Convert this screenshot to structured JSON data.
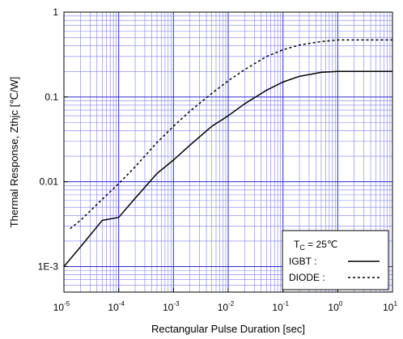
{
  "chart_data": {
    "type": "line",
    "xlabel": "Rectangular Pulse Duration [sec]",
    "ylabel": "Thermal Response, Zthjc [℃/W]",
    "x_scale": "log",
    "y_scale": "log",
    "xlim": [
      1e-05,
      10
    ],
    "ylim": [
      0.0005,
      1
    ],
    "grid": true,
    "x_ticks": [
      {
        "value": 1e-05,
        "base": "10",
        "exp": "-5"
      },
      {
        "value": 0.0001,
        "base": "10",
        "exp": "-4"
      },
      {
        "value": 0.001,
        "base": "10",
        "exp": "-3"
      },
      {
        "value": 0.01,
        "base": "10",
        "exp": "-2"
      },
      {
        "value": 0.1,
        "base": "10",
        "exp": "-1"
      },
      {
        "value": 1,
        "base": "10",
        "exp": "0"
      },
      {
        "value": 10,
        "base": "10",
        "exp": "1"
      }
    ],
    "y_ticks": [
      {
        "value": 0.001,
        "label": "1E-3"
      },
      {
        "value": 0.01,
        "label": "0.01"
      },
      {
        "value": 0.1,
        "label": "0.1"
      },
      {
        "value": 1,
        "label": "1"
      }
    ],
    "legend": {
      "position": "bottom-right",
      "condition_prefix": "T",
      "condition_sub": "C",
      "condition_value": " = 25℃"
    },
    "series": [
      {
        "name": "IGBT",
        "legend_label": "IGBT    :",
        "style": "solid",
        "color": "#000000",
        "points": [
          [
            1e-05,
            0.001
          ],
          [
            2e-05,
            0.0017
          ],
          [
            5e-05,
            0.0035
          ],
          [
            0.0001,
            0.0038
          ],
          [
            0.0002,
            0.0064
          ],
          [
            0.0005,
            0.0125
          ],
          [
            0.001,
            0.018
          ],
          [
            0.002,
            0.027
          ],
          [
            0.005,
            0.045
          ],
          [
            0.01,
            0.06
          ],
          [
            0.02,
            0.083
          ],
          [
            0.05,
            0.12
          ],
          [
            0.1,
            0.15
          ],
          [
            0.2,
            0.175
          ],
          [
            0.5,
            0.195
          ],
          [
            1,
            0.2
          ],
          [
            2,
            0.2
          ],
          [
            10,
            0.2
          ]
        ]
      },
      {
        "name": "DIODE",
        "legend_label": "DIODE :",
        "style": "dashed",
        "color": "#000000",
        "points": [
          [
            1.3e-05,
            0.0028
          ],
          [
            2e-05,
            0.0035
          ],
          [
            5e-05,
            0.0062
          ],
          [
            0.0001,
            0.0095
          ],
          [
            0.0002,
            0.015
          ],
          [
            0.0005,
            0.029
          ],
          [
            0.001,
            0.045
          ],
          [
            0.002,
            0.068
          ],
          [
            0.005,
            0.11
          ],
          [
            0.01,
            0.155
          ],
          [
            0.02,
            0.21
          ],
          [
            0.05,
            0.3
          ],
          [
            0.1,
            0.36
          ],
          [
            0.2,
            0.41
          ],
          [
            0.5,
            0.45
          ],
          [
            1,
            0.47
          ],
          [
            10,
            0.47
          ]
        ]
      }
    ]
  }
}
